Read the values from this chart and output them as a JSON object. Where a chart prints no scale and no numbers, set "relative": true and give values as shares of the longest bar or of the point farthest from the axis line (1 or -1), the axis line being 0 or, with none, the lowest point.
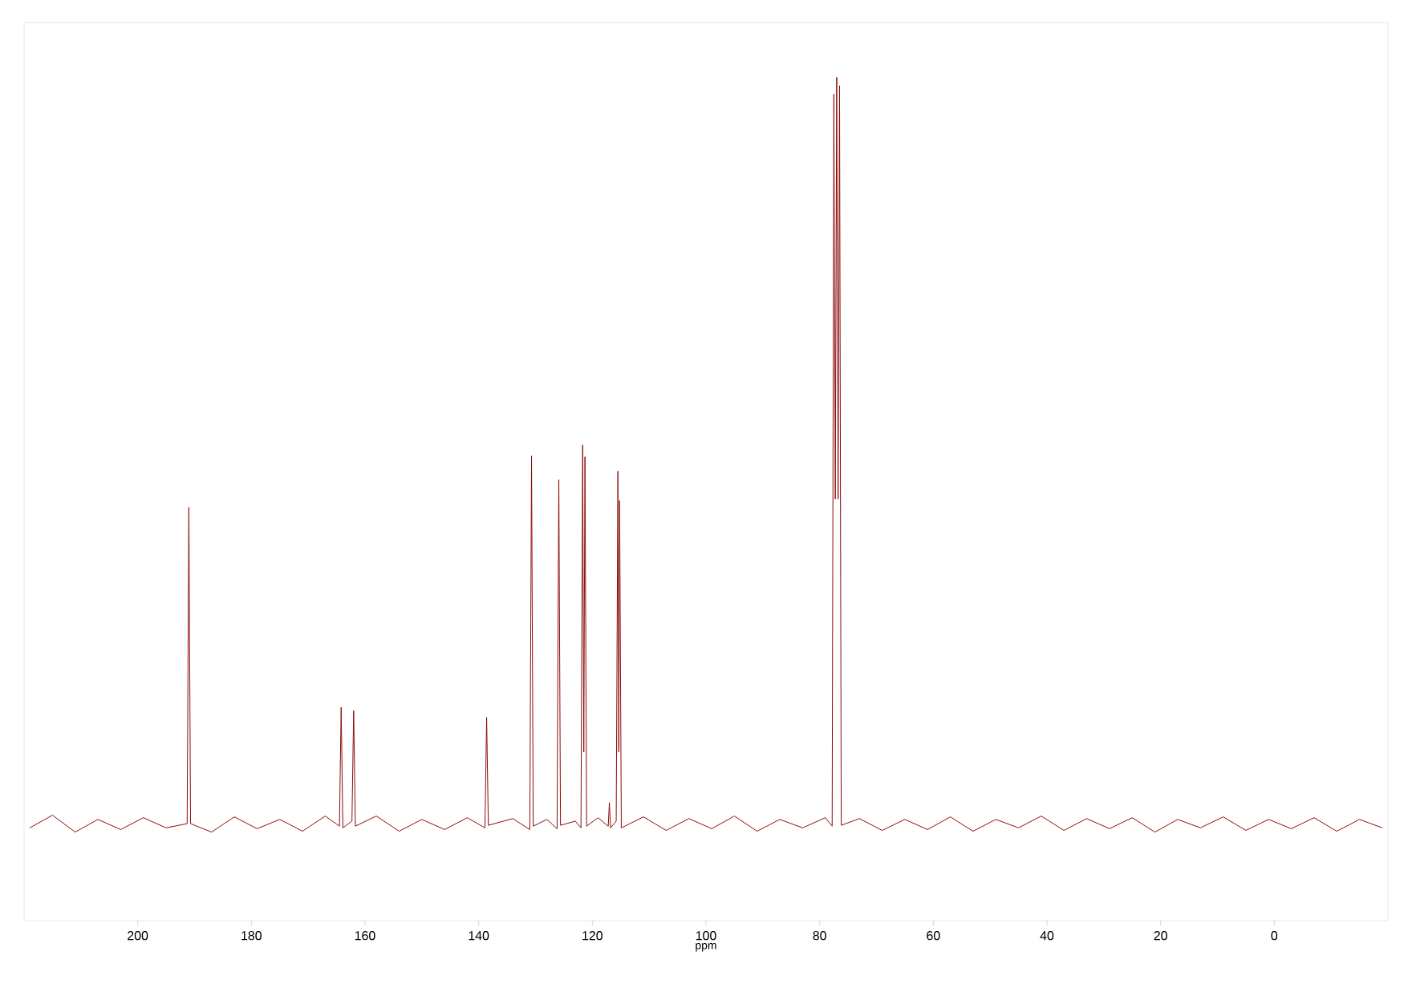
{
  "chart_data": {
    "type": "line",
    "xlabel": "ppm",
    "relative": true,
    "xlim": [
      220,
      -20
    ],
    "xticks": [
      200,
      180,
      160,
      140,
      120,
      100,
      80,
      60,
      40,
      20,
      0
    ],
    "grid": false,
    "marker": "none",
    "line_style": "solid",
    "series": [
      {
        "color": "#8b0a0a",
        "x": [
          219,
          215,
          211,
          207,
          203,
          199,
          195,
          191.3,
          191.0,
          190.7,
          187,
          183,
          179,
          175,
          171,
          167,
          164.5,
          164.2,
          163.9,
          162.3,
          162.0,
          161.7,
          158,
          154,
          150,
          146,
          142,
          138.9,
          138.6,
          138.3,
          134,
          131.0,
          130.7,
          130.4,
          128,
          126.2,
          125.9,
          125.6,
          123,
          122.0,
          121.7,
          121.5,
          121.3,
          121.0,
          119,
          117.2,
          117.0,
          116.8,
          115.8,
          115.5,
          115.35,
          115.2,
          114.9,
          111,
          107,
          103,
          99,
          95,
          91,
          87,
          83,
          79,
          77.8,
          77.5,
          77.25,
          77.0,
          76.75,
          76.5,
          76.2,
          73,
          69,
          65,
          61,
          57,
          53,
          49,
          45,
          41,
          37,
          33,
          29,
          25,
          21,
          17,
          13,
          9,
          5,
          1,
          -3,
          -7,
          -11,
          -15,
          -19
        ],
        "values": [
          0.11,
          0.125,
          0.105,
          0.12,
          0.108,
          0.122,
          0.11,
          0.115,
          0.49,
          0.115,
          0.105,
          0.123,
          0.109,
          0.12,
          0.106,
          0.124,
          0.112,
          0.253,
          0.11,
          0.118,
          0.249,
          0.112,
          0.124,
          0.106,
          0.12,
          0.108,
          0.122,
          0.11,
          0.241,
          0.113,
          0.121,
          0.108,
          0.551,
          0.112,
          0.12,
          0.109,
          0.523,
          0.113,
          0.118,
          0.11,
          0.564,
          0.2,
          0.55,
          0.112,
          0.122,
          0.112,
          0.14,
          0.11,
          0.118,
          0.533,
          0.2,
          0.498,
          0.11,
          0.123,
          0.107,
          0.121,
          0.109,
          0.124,
          0.106,
          0.12,
          0.11,
          0.122,
          0.112,
          0.98,
          0.5,
          1.0,
          0.5,
          0.99,
          0.113,
          0.121,
          0.107,
          0.12,
          0.108,
          0.123,
          0.106,
          0.12,
          0.11,
          0.124,
          0.107,
          0.121,
          0.109,
          0.122,
          0.105,
          0.12,
          0.11,
          0.123,
          0.107,
          0.12,
          0.109,
          0.122,
          0.106,
          0.12,
          0.11
        ]
      }
    ]
  }
}
